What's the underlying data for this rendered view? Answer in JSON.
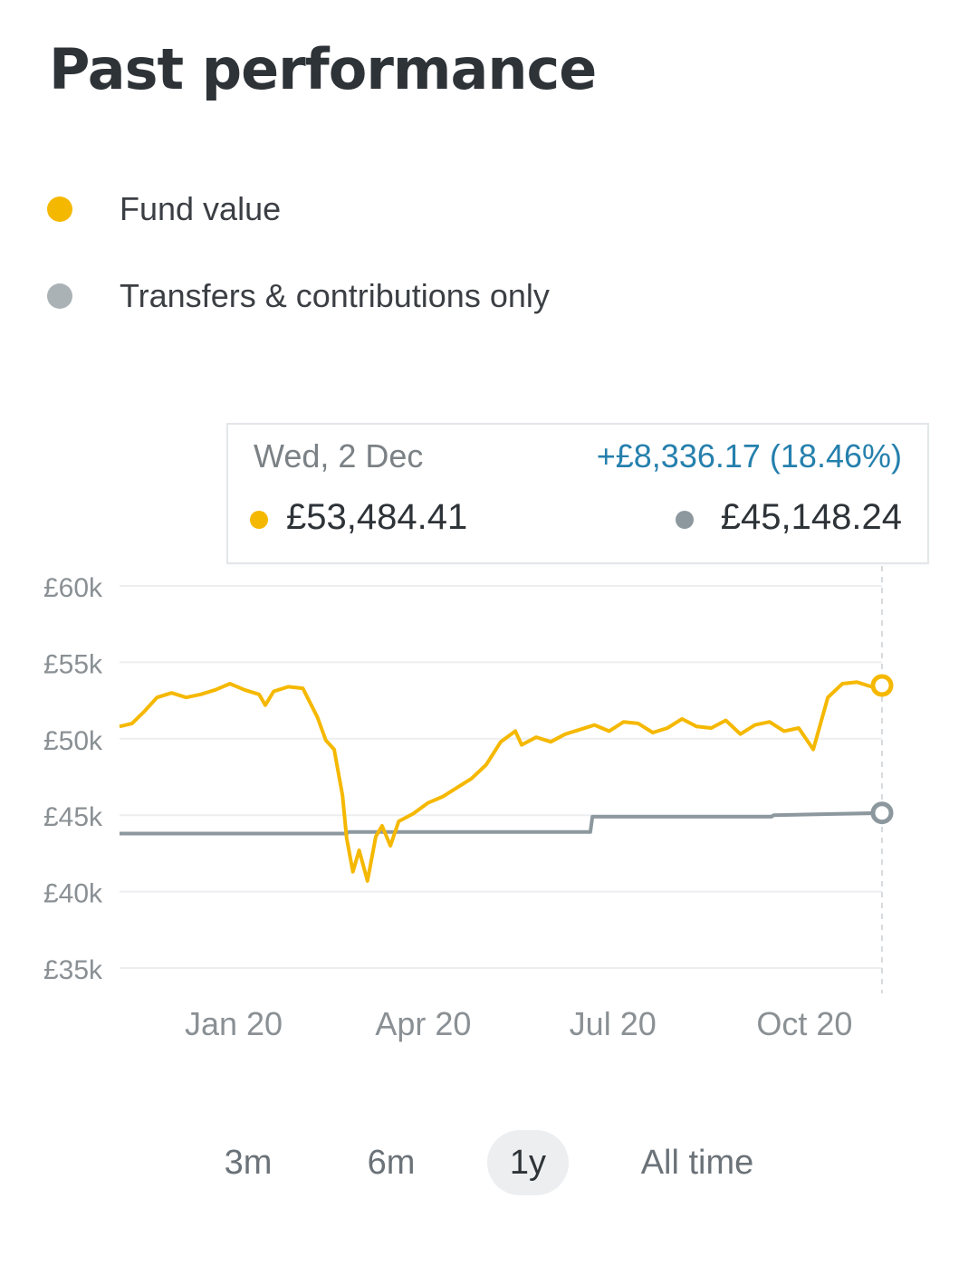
{
  "header": {
    "title": "Past performance"
  },
  "legend": [
    {
      "label": "Fund value",
      "color": "#f5b800"
    },
    {
      "label": "Transfers & contributions only",
      "color": "#aab2b6"
    }
  ],
  "tooltip": {
    "date": "Wed, 2 Dec",
    "change": "+£8,336.17 (18.46%)",
    "fund_value": "£53,484.41",
    "contributions_value": "£45,148.24",
    "fund_color": "#f5b800",
    "contributions_color": "#8c989e"
  },
  "range_selector": {
    "options": [
      "3m",
      "6m",
      "1y",
      "All time"
    ],
    "selected": "1y"
  },
  "chart_data": {
    "type": "line",
    "title": "",
    "xlabel": "",
    "ylabel": "",
    "x_range": [
      "2019-12-02",
      "2020-12-02"
    ],
    "ylim": [
      35000,
      60000
    ],
    "y_ticks": [
      60000,
      55000,
      50000,
      45000,
      40000,
      35000
    ],
    "y_tick_labels": [
      "£60k",
      "£55k",
      "£50k",
      "£45k",
      "£40k",
      "£35k"
    ],
    "x_ticks": [
      "2020-01-01",
      "2020-04-01",
      "2020-07-01",
      "2020-10-01"
    ],
    "x_tick_labels": [
      "Jan 20",
      "Apr 20",
      "Jul 20",
      "Oct 20"
    ],
    "grid": true,
    "legend_position": "top-left",
    "series": [
      {
        "name": "Fund value",
        "color": "#f5b800",
        "points": [
          [
            "2019-12-02",
            50800
          ],
          [
            "2019-12-08",
            51000
          ],
          [
            "2019-12-14",
            51800
          ],
          [
            "2019-12-20",
            52700
          ],
          [
            "2019-12-27",
            53000
          ],
          [
            "2020-01-03",
            52700
          ],
          [
            "2020-01-10",
            52900
          ],
          [
            "2020-01-17",
            53200
          ],
          [
            "2020-01-24",
            53600
          ],
          [
            "2020-01-31",
            53200
          ],
          [
            "2020-02-07",
            52900
          ],
          [
            "2020-02-10",
            52200
          ],
          [
            "2020-02-14",
            53100
          ],
          [
            "2020-02-21",
            53400
          ],
          [
            "2020-02-28",
            53300
          ],
          [
            "2020-03-06",
            51400
          ],
          [
            "2020-03-10",
            49900
          ],
          [
            "2020-03-14",
            49300
          ],
          [
            "2020-03-18",
            46300
          ],
          [
            "2020-03-20",
            43500
          ],
          [
            "2020-03-23",
            41300
          ],
          [
            "2020-03-26",
            42700
          ],
          [
            "2020-03-30",
            40700
          ],
          [
            "2020-04-03",
            43600
          ],
          [
            "2020-04-06",
            44300
          ],
          [
            "2020-04-10",
            43000
          ],
          [
            "2020-04-14",
            44600
          ],
          [
            "2020-04-21",
            45100
          ],
          [
            "2020-04-28",
            45800
          ],
          [
            "2020-05-05",
            46200
          ],
          [
            "2020-05-12",
            46800
          ],
          [
            "2020-05-19",
            47400
          ],
          [
            "2020-05-26",
            48300
          ],
          [
            "2020-06-02",
            49800
          ],
          [
            "2020-06-09",
            50500
          ],
          [
            "2020-06-12",
            49600
          ],
          [
            "2020-06-19",
            50100
          ],
          [
            "2020-06-26",
            49800
          ],
          [
            "2020-07-03",
            50300
          ],
          [
            "2020-07-10",
            50600
          ],
          [
            "2020-07-17",
            50900
          ],
          [
            "2020-07-24",
            50500
          ],
          [
            "2020-07-31",
            51100
          ],
          [
            "2020-08-07",
            51000
          ],
          [
            "2020-08-14",
            50400
          ],
          [
            "2020-08-21",
            50700
          ],
          [
            "2020-08-28",
            51300
          ],
          [
            "2020-09-04",
            50800
          ],
          [
            "2020-09-11",
            50700
          ],
          [
            "2020-09-18",
            51200
          ],
          [
            "2020-09-25",
            50300
          ],
          [
            "2020-10-02",
            50900
          ],
          [
            "2020-10-09",
            51100
          ],
          [
            "2020-10-16",
            50500
          ],
          [
            "2020-10-23",
            50700
          ],
          [
            "2020-10-30",
            49300
          ],
          [
            "2020-11-06",
            52700
          ],
          [
            "2020-11-13",
            53600
          ],
          [
            "2020-11-20",
            53700
          ],
          [
            "2020-11-27",
            53400
          ],
          [
            "2020-12-02",
            53484.41
          ]
        ]
      },
      {
        "name": "Transfers & contributions only",
        "color": "#8c989e",
        "points": [
          [
            "2019-12-02",
            43800
          ],
          [
            "2020-03-20",
            43800
          ],
          [
            "2020-03-21",
            43900
          ],
          [
            "2020-07-15",
            43900
          ],
          [
            "2020-07-16",
            44900
          ],
          [
            "2020-10-10",
            44900
          ],
          [
            "2020-10-11",
            45000
          ],
          [
            "2020-12-02",
            45148.24
          ]
        ]
      }
    ]
  }
}
